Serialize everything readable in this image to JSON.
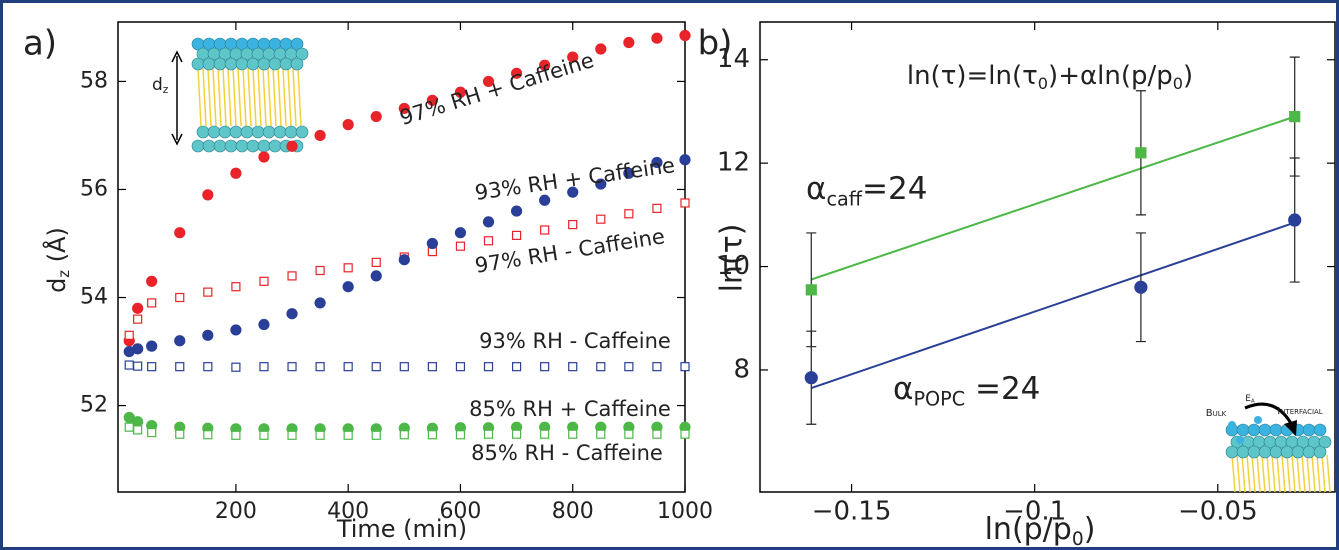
{
  "chart_data": [
    {
      "type": "scatter",
      "panel_label": "a)",
      "xlabel": "Time (min)",
      "ylabel": [
        "d",
        "z",
        " (Å)"
      ],
      "xlim": [
        -10,
        1000
      ],
      "ylim": [
        50.4,
        59.1
      ],
      "xticks": [
        200,
        400,
        600,
        800,
        1000
      ],
      "yticks": [
        52,
        54,
        56,
        58
      ],
      "x": [
        10,
        25,
        50,
        100,
        150,
        200,
        250,
        300,
        350,
        400,
        450,
        500,
        550,
        600,
        650,
        700,
        750,
        800,
        850,
        900,
        950,
        1000
      ],
      "series": [
        {
          "color": "#e8232a",
          "marker": "circle",
          "filled": true,
          "values": [
            53.2,
            53.8,
            54.3,
            55.2,
            55.9,
            56.3,
            56.6,
            56.8,
            57.0,
            57.2,
            57.35,
            57.5,
            57.65,
            57.8,
            58.0,
            58.15,
            58.3,
            58.45,
            58.6,
            58.72,
            58.8,
            58.85
          ]
        },
        {
          "color": "#e8232a",
          "marker": "square",
          "filled": false,
          "values": [
            53.3,
            53.6,
            53.9,
            54.0,
            54.1,
            54.2,
            54.3,
            54.4,
            54.5,
            54.55,
            54.65,
            54.75,
            54.85,
            54.95,
            55.05,
            55.15,
            55.25,
            55.35,
            55.45,
            55.55,
            55.65,
            55.75
          ]
        },
        {
          "color": "#2a3f97",
          "marker": "circle",
          "filled": true,
          "values": [
            53.0,
            53.05,
            53.1,
            53.2,
            53.3,
            53.4,
            53.5,
            53.7,
            53.9,
            54.2,
            54.4,
            54.7,
            55.0,
            55.2,
            55.4,
            55.6,
            55.8,
            55.95,
            56.1,
            56.3,
            56.5,
            56.55
          ]
        },
        {
          "color": "#2a3f97",
          "marker": "square",
          "filled": false,
          "values": [
            52.75,
            52.73,
            52.72,
            52.72,
            52.72,
            52.71,
            52.72,
            52.72,
            52.72,
            52.72,
            52.72,
            52.72,
            52.72,
            52.72,
            52.72,
            52.72,
            52.72,
            52.72,
            52.72,
            52.72,
            52.72,
            52.72
          ]
        },
        {
          "color": "#4db748",
          "marker": "circle",
          "filled": true,
          "values": [
            51.78,
            51.7,
            51.63,
            51.6,
            51.58,
            51.57,
            51.57,
            51.57,
            51.57,
            51.57,
            51.57,
            51.58,
            51.58,
            51.59,
            51.59,
            51.6,
            51.6,
            51.6,
            51.6,
            51.6,
            51.6,
            51.6
          ]
        },
        {
          "color": "#4db748",
          "marker": "square",
          "filled": false,
          "values": [
            51.6,
            51.55,
            51.5,
            51.47,
            51.46,
            51.45,
            51.45,
            51.45,
            51.45,
            51.45,
            51.45,
            51.46,
            51.46,
            51.46,
            51.47,
            51.47,
            51.47,
            51.47,
            51.47,
            51.47,
            51.47,
            51.47
          ]
        }
      ],
      "annotations": [
        "97% RH + Caffeine",
        "93% RH + Caffeine",
        "97% RH - Caffeine",
        "93% RH - Caffeine",
        "85% RH + Caffeine",
        "85% RH - Caffeine",
        [
          "d",
          "z"
        ]
      ]
    },
    {
      "type": "scatter",
      "panel_label": "b)",
      "xlabel": [
        "ln(p/p",
        "0",
        ")"
      ],
      "ylabel": "ln(τ)",
      "xlim": [
        -0.175,
        -0.018
      ],
      "ylim": [
        5.64,
        14.73
      ],
      "xticks": [
        {
          "value": -0.15,
          "label": "−0.15"
        },
        {
          "value": -0.1,
          "label": "−0.1"
        },
        {
          "value": -0.05,
          "label": "−0.05"
        }
      ],
      "yticks": [
        8,
        10,
        12,
        14
      ],
      "x": [
        -0.161,
        -0.071,
        -0.029
      ],
      "series": [
        {
          "color": "#4db748",
          "marker": "square",
          "filled": true,
          "values": [
            9.55,
            12.2,
            12.9
          ],
          "errors": [
            1.1,
            1.2,
            1.15
          ]
        },
        {
          "color": "#2a3f97",
          "marker": "circle",
          "filled": true,
          "values": [
            7.85,
            9.6,
            10.9
          ],
          "errors": [
            0.9,
            1.05,
            1.2
          ]
        }
      ],
      "fits": [
        {
          "color": "#4db748",
          "x": [
            -0.161,
            -0.029
          ],
          "values": [
            9.75,
            12.9
          ]
        },
        {
          "color": "#2a3f97",
          "x": [
            -0.161,
            -0.029
          ],
          "values": [
            7.65,
            10.85
          ]
        }
      ],
      "annotations": [
        [
          "ln(τ)=ln(τ",
          "0",
          ")+αln(p/p",
          "0",
          ")"
        ],
        [
          "α",
          "caff",
          "=24"
        ],
        [
          "α",
          "POPC",
          " =24"
        ],
        "Bulk",
        [
          "E",
          "A"
        ],
        "Interfacial"
      ]
    }
  ]
}
